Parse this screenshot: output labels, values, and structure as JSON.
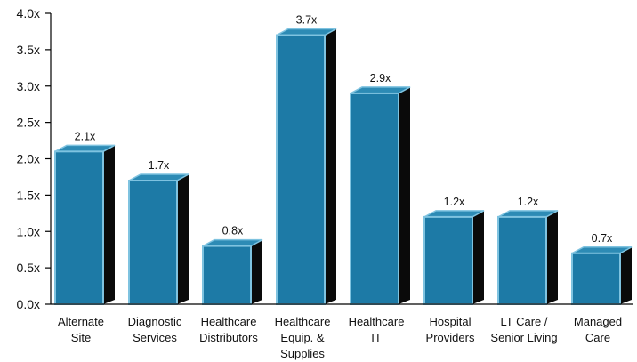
{
  "chart_data": {
    "type": "bar",
    "categories": [
      [
        "Alternate",
        "Site"
      ],
      [
        "Diagnostic",
        "Services"
      ],
      [
        "Healthcare",
        "Distributors"
      ],
      [
        "Healthcare",
        "Equip. &",
        "Supplies"
      ],
      [
        "Healthcare",
        "IT"
      ],
      [
        "Hospital",
        "Providers"
      ],
      [
        "LT Care /",
        "Senior Living"
      ],
      [
        "Managed",
        "Care"
      ]
    ],
    "values": [
      2.1,
      1.7,
      0.8,
      3.7,
      2.9,
      1.2,
      1.2,
      0.7
    ],
    "data_labels": [
      "2.1x",
      "1.7x",
      "0.8x",
      "3.7x",
      "2.9x",
      "1.2x",
      "1.2x",
      "0.7x"
    ],
    "ylim": [
      0,
      4.0
    ],
    "yticks": [
      "0.0x",
      "0.5x",
      "1.0x",
      "1.5x",
      "2.0x",
      "2.5x",
      "3.0x",
      "3.5x",
      "4.0x"
    ],
    "grid": false,
    "style": "3d-bar",
    "colors": {
      "bar_front": "#1d7aa6",
      "bar_edge": "#7fc3e0",
      "bar_top": "#2d8bb5",
      "bar_side": "#0a0a0a",
      "axis": "#000000"
    }
  }
}
